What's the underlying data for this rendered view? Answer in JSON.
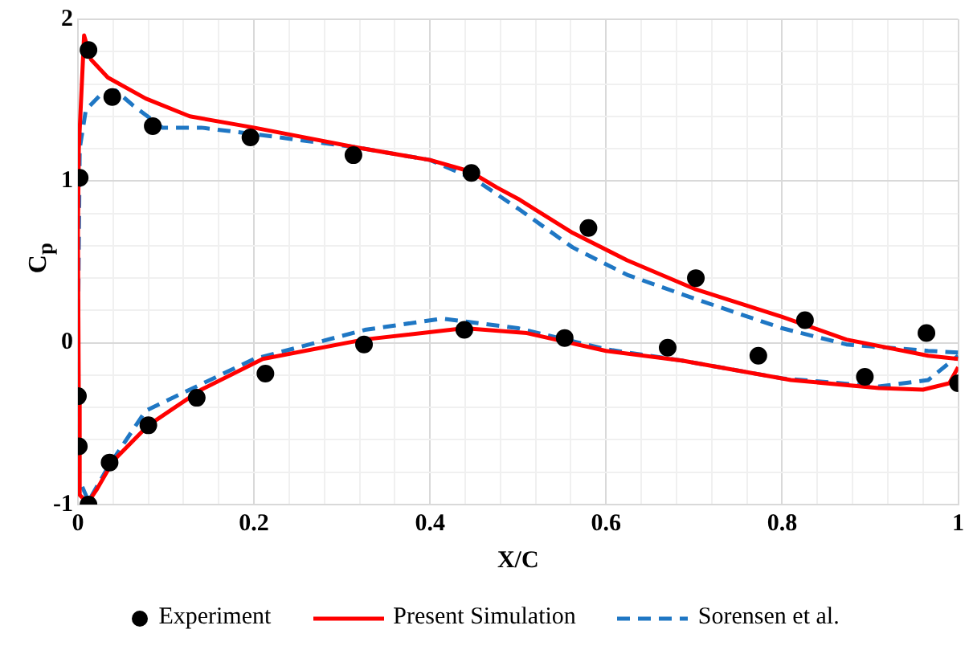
{
  "chart_data": {
    "type": "line",
    "xlabel": "X/C",
    "ylabel": "C$_{p}$",
    "xlim": [
      0,
      1
    ],
    "ylim": [
      -1,
      2
    ],
    "xticks": [
      0,
      {
        "value": 0.04,
        "label": null
      },
      {
        "value": 0.08,
        "label": null
      },
      {
        "value": 0.12,
        "label": null
      },
      {
        "value": 0.16,
        "label": null
      },
      0.2,
      {
        "value": 0.24,
        "label": null
      },
      {
        "value": 0.28,
        "label": null
      },
      {
        "value": 0.32,
        "label": null
      },
      {
        "value": 0.36,
        "label": null
      },
      0.4,
      {
        "value": 0.44,
        "label": null
      },
      {
        "value": 0.48,
        "label": null
      },
      {
        "value": 0.52,
        "label": null
      },
      {
        "value": 0.56,
        "label": null
      },
      0.6,
      {
        "value": 0.64,
        "label": null
      },
      {
        "value": 0.68,
        "label": null
      },
      {
        "value": 0.72,
        "label": null
      },
      {
        "value": 0.76,
        "label": null
      },
      0.8,
      {
        "value": 0.84,
        "label": null
      },
      {
        "value": 0.88,
        "label": null
      },
      {
        "value": 0.92,
        "label": null
      },
      {
        "value": 0.96,
        "label": null
      },
      1
    ],
    "yticks": [
      -1,
      {
        "value": -0.8,
        "label": null
      },
      {
        "value": -0.6,
        "label": null
      },
      {
        "value": -0.4,
        "label": null
      },
      {
        "value": -0.2,
        "label": null
      },
      0,
      {
        "value": 0.2,
        "label": null
      },
      {
        "value": 0.4,
        "label": null
      },
      {
        "value": 0.6,
        "label": null
      },
      {
        "value": 0.8,
        "label": null
      },
      1,
      {
        "value": 1.2,
        "label": null
      },
      {
        "value": 1.4,
        "label": null
      },
      {
        "value": 1.6,
        "label": null
      },
      {
        "value": 1.8,
        "label": null
      },
      2
    ],
    "grid": true,
    "legend": "bottom",
    "series": [
      {
        "name": "Experiment",
        "type": "scatter",
        "marker": "circle",
        "color": "#000000",
        "x": [
          0.012,
          0.039,
          0.085,
          0.196,
          0.313,
          0.447,
          0.002,
          0.0,
          0.001,
          0.012,
          0.036,
          0.08,
          0.135,
          0.213,
          0.325,
          0.439,
          0.58,
          0.702,
          0.826,
          0.964,
          0.553,
          0.67,
          0.773,
          0.894,
          1.0
        ],
        "values": [
          1.81,
          1.52,
          1.34,
          1.27,
          1.16,
          1.05,
          1.02,
          -0.33,
          -0.64,
          -1.0,
          -0.74,
          -0.51,
          -0.34,
          -0.19,
          -0.01,
          0.08,
          0.71,
          0.4,
          0.14,
          0.06,
          0.03,
          -0.03,
          -0.08,
          -0.21,
          -0.25
        ]
      },
      {
        "name": "Present Simulation",
        "type": "line",
        "marker": "none",
        "line_style": "solid",
        "color": "#ff0000",
        "x": [
          1,
          0.966,
          0.873,
          0.8,
          0.702,
          0.624,
          0.562,
          0.5,
          0.476,
          0.445,
          0.4,
          0.314,
          0.2,
          0.127,
          0.077,
          0.034,
          0.015,
          0.007,
          0.001,
          0,
          0.001,
          0.002,
          0.011,
          0.021,
          0.04,
          0.08,
          0.14,
          0.21,
          0.325,
          0.439,
          0.51,
          0.6,
          0.686,
          0.81,
          0.91,
          0.96,
          0.99,
          1
        ],
        "values": [
          -0.1,
          -0.08,
          0.02,
          0.16,
          0.33,
          0.51,
          0.68,
          0.89,
          0.96,
          1.06,
          1.13,
          1.21,
          1.33,
          1.4,
          1.51,
          1.64,
          1.75,
          1.9,
          1.2,
          0.68,
          -0.36,
          -0.94,
          -0.99,
          -0.91,
          -0.73,
          -0.51,
          -0.29,
          -0.1,
          0.02,
          0.09,
          0.06,
          -0.05,
          -0.11,
          -0.23,
          -0.28,
          -0.29,
          -0.25,
          -0.15
        ]
      },
      {
        "name": "Sorensen et al.",
        "type": "line",
        "marker": "none",
        "line_style": "dashed",
        "color": "#1f77c4",
        "x": [
          1,
          0.966,
          0.873,
          0.8,
          0.702,
          0.624,
          0.562,
          0.5,
          0.451,
          0.4,
          0.314,
          0.2,
          0.14,
          0.096,
          0.062,
          0.043,
          0.027,
          0.009,
          0.002,
          0,
          0.001,
          0.012,
          0.034,
          0.077,
          0.2,
          0.326,
          0.414,
          0.5,
          0.6,
          0.686,
          0.8,
          0.91,
          0.966,
          1
        ],
        "values": [
          -0.06,
          -0.05,
          -0.01,
          0.09,
          0.27,
          0.42,
          0.59,
          0.83,
          1.01,
          1.13,
          1.21,
          1.29,
          1.33,
          1.33,
          1.47,
          1.56,
          1.54,
          1.44,
          1.2,
          -0.01,
          -0.84,
          -0.98,
          -0.77,
          -0.42,
          -0.1,
          0.08,
          0.15,
          0.09,
          -0.04,
          -0.11,
          -0.22,
          -0.27,
          -0.23,
          -0.08
        ]
      }
    ]
  }
}
